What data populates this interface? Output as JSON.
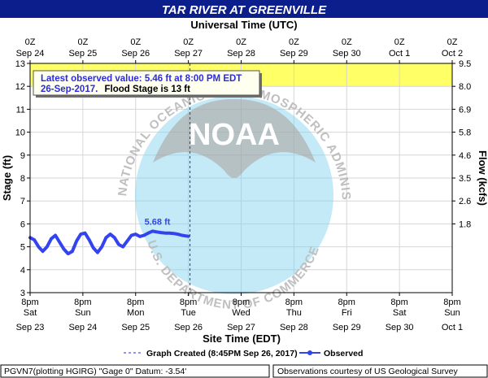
{
  "header": {
    "title": "TAR RIVER AT GREENVILLE",
    "top_axis_title": "Universal Time (UTC)"
  },
  "footer": {
    "site_id_text": "PGVN7(plotting HGIRG) \"Gage 0\" Datum: -3.54'",
    "credit_text": "Observations courtesy of US Geological Survey"
  },
  "annotation": {
    "latest_line1": "Latest observed value: 5.46 ft at 8:00 PM EDT",
    "latest_date": "26-Sep-2017.",
    "flood_stage_text": "Flood Stage is 13 ft",
    "peak_label": "5.68 ft"
  },
  "watermark": {
    "logo_text": "NOAA",
    "ring_text": "NATIONAL OCEANIC AND ATMOSPHERIC ADMINISTRATION",
    "ring_text_bottom": "U.S. DEPARTMENT OF COMMERCE"
  },
  "colors": {
    "title_bar": "#0c1d8c",
    "flood_band": "#ffff66",
    "observed": "#3344ee",
    "grid": "#d6d6d6",
    "watermark_blue": "#7fd2ef",
    "watermark_gray": "#a5a5a5"
  },
  "chart_data": {
    "type": "line",
    "title": "TAR RIVER AT GREENVILLE",
    "xlabel": "Site Time (EDT)",
    "ylabel": "Stage (ft)",
    "y2label": "Flow (kcfs)",
    "x2label": "Universal Time (UTC)",
    "ylim": [
      3,
      13
    ],
    "y_ticks": [
      "3",
      "4",
      "5",
      "6",
      "7",
      "8",
      "9",
      "10",
      "11",
      "12",
      "13"
    ],
    "y2_ticks": [
      {
        "stage": 13,
        "label": "9.5"
      },
      {
        "stage": 12,
        "label": "8.0"
      },
      {
        "stage": 11,
        "label": "6.9"
      },
      {
        "stage": 10,
        "label": "5.8"
      },
      {
        "stage": 9,
        "label": "4.6"
      },
      {
        "stage": 8,
        "label": "3.5"
      },
      {
        "stage": 7,
        "label": "2.6"
      },
      {
        "stage": 6,
        "label": "1.8"
      }
    ],
    "x_ticks": [
      {
        "time": "8pm",
        "day": "Sat",
        "date": "Sep 23"
      },
      {
        "time": "8pm",
        "day": "Sun",
        "date": "Sep 24"
      },
      {
        "time": "8pm",
        "day": "Mon",
        "date": "Sep 25"
      },
      {
        "time": "8pm",
        "day": "Tue",
        "date": "Sep 26"
      },
      {
        "time": "8pm",
        "day": "Wed",
        "date": "Sep 27"
      },
      {
        "time": "8pm",
        "day": "Thu",
        "date": "Sep 28"
      },
      {
        "time": "8pm",
        "day": "Fri",
        "date": "Sep 29"
      },
      {
        "time": "8pm",
        "day": "Sat",
        "date": "Sep 30"
      },
      {
        "time": "8pm",
        "day": "Sun",
        "date": "Oct 1"
      }
    ],
    "top_ticks": [
      {
        "time": "0Z",
        "date": "Sep 24"
      },
      {
        "time": "0Z",
        "date": "Sep 25"
      },
      {
        "time": "0Z",
        "date": "Sep 26"
      },
      {
        "time": "0Z",
        "date": "Sep 27"
      },
      {
        "time": "0Z",
        "date": "Sep 28"
      },
      {
        "time": "0Z",
        "date": "Sep 29"
      },
      {
        "time": "0Z",
        "date": "Sep 30"
      },
      {
        "time": "0Z",
        "date": "Oct  1"
      },
      {
        "time": "0Z",
        "date": "Oct  2"
      }
    ],
    "flood_stage": 13,
    "band_bottom_stage": 12,
    "graph_created_label": "Graph Created (8:45PM Sep 26, 2017)",
    "graph_created_day": 3.03,
    "series": [
      {
        "name": "Observed",
        "x_days": [
          0,
          0.08,
          0.16,
          0.24,
          0.32,
          0.4,
          0.48,
          0.56,
          0.64,
          0.72,
          0.8,
          0.88,
          0.96,
          1.04,
          1.12,
          1.2,
          1.28,
          1.36,
          1.44,
          1.52,
          1.6,
          1.68,
          1.76,
          1.84,
          1.92,
          2.0,
          2.08,
          2.16,
          2.24,
          2.32,
          2.4,
          2.48,
          2.56,
          2.64,
          2.72,
          2.8,
          2.88,
          2.96,
          3.0
        ],
        "stage": [
          5.4,
          5.3,
          5.0,
          4.8,
          5.0,
          5.35,
          5.5,
          5.2,
          4.9,
          4.7,
          4.8,
          5.25,
          5.55,
          5.6,
          5.3,
          4.95,
          4.75,
          5.0,
          5.4,
          5.55,
          5.4,
          5.1,
          5.0,
          5.25,
          5.5,
          5.55,
          5.45,
          5.5,
          5.6,
          5.68,
          5.65,
          5.62,
          5.6,
          5.6,
          5.58,
          5.55,
          5.5,
          5.47,
          5.46
        ]
      }
    ],
    "legend": [
      "Graph Created (8:45PM Sep 26, 2017)",
      "Observed"
    ],
    "grid": true
  }
}
